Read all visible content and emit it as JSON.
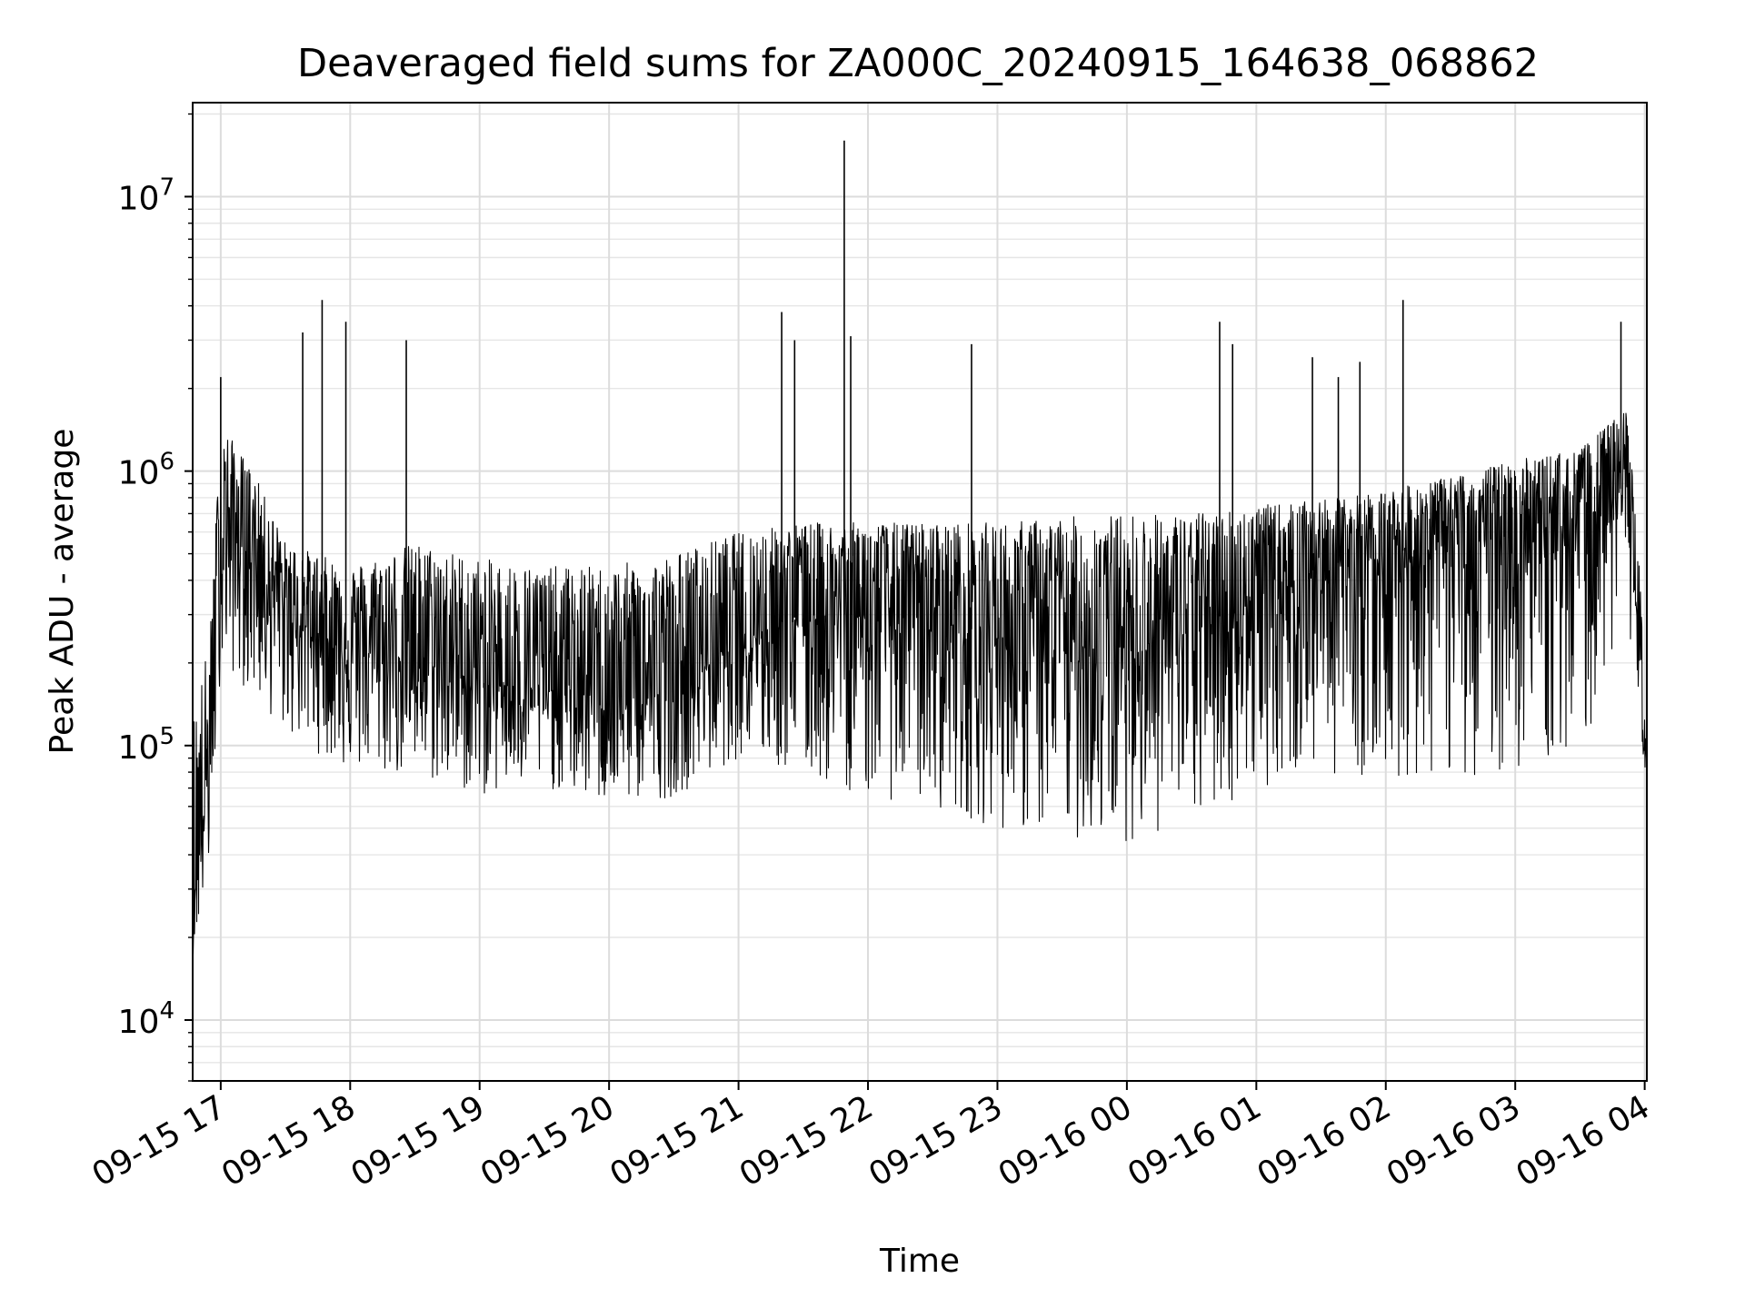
{
  "chart_data": {
    "type": "line",
    "title": "Deaveraged field sums for ZA000C_20240915_164638_068862",
    "xlabel": "Time",
    "ylabel": "Peak ADU - average",
    "xscale": "time",
    "yscale": "log",
    "xlim": [
      "2024-09-15 16:47",
      "2024-09-16 04:01"
    ],
    "ylim": [
      6000,
      22000000
    ],
    "grid": true,
    "grid_minor": true,
    "line_color": "#000000",
    "x_ticks": [
      "09-15 17",
      "09-15 18",
      "09-15 19",
      "09-15 20",
      "09-15 21",
      "09-15 22",
      "09-15 23",
      "09-16 00",
      "09-16 01",
      "09-16 02",
      "09-16 03",
      "09-16 04"
    ],
    "y_ticks": [
      {
        "base": "10",
        "exp": "4",
        "value": 10000
      },
      {
        "base": "10",
        "exp": "5",
        "value": 100000
      },
      {
        "base": "10",
        "exp": "6",
        "value": 1000000
      },
      {
        "base": "10",
        "exp": "7",
        "value": 10000000
      }
    ],
    "series": [
      {
        "envelope": [
          {
            "x": "2024-09-15 16:47",
            "low": 17000,
            "mid": 25000,
            "high": 130000
          },
          {
            "x": "2024-09-15 16:55",
            "low": 35000,
            "mid": 90000,
            "high": 250000
          },
          {
            "x": "2024-09-15 17:00",
            "low": 200000,
            "mid": 600000,
            "high": 1500000
          },
          {
            "x": "2024-09-15 17:15",
            "low": 150000,
            "mid": 500000,
            "high": 1000000
          },
          {
            "x": "2024-09-15 17:30",
            "low": 110000,
            "mid": 300000,
            "high": 550000
          },
          {
            "x": "2024-09-15 18:00",
            "low": 80000,
            "mid": 220000,
            "high": 450000
          },
          {
            "x": "2024-09-15 18:30",
            "low": 75000,
            "mid": 210000,
            "high": 550000
          },
          {
            "x": "2024-09-15 19:00",
            "low": 65000,
            "mid": 170000,
            "high": 480000
          },
          {
            "x": "2024-09-15 19:30",
            "low": 70000,
            "mid": 160000,
            "high": 450000
          },
          {
            "x": "2024-09-15 20:00",
            "low": 60000,
            "mid": 150000,
            "high": 450000
          },
          {
            "x": "2024-09-15 20:30",
            "low": 65000,
            "mid": 155000,
            "high": 500000
          },
          {
            "x": "2024-09-15 21:00",
            "low": 90000,
            "mid": 250000,
            "high": 600000
          },
          {
            "x": "2024-09-15 21:30",
            "low": 75000,
            "mid": 300000,
            "high": 650000
          },
          {
            "x": "2024-09-15 22:00",
            "low": 65000,
            "mid": 300000,
            "high": 650000
          },
          {
            "x": "2024-09-15 22:30",
            "low": 60000,
            "mid": 290000,
            "high": 650000
          },
          {
            "x": "2024-09-15 23:00",
            "low": 50000,
            "mid": 250000,
            "high": 650000
          },
          {
            "x": "2024-09-15 23:30",
            "low": 45000,
            "mid": 230000,
            "high": 680000
          },
          {
            "x": "2024-09-16 00:00",
            "low": 45000,
            "mid": 230000,
            "high": 700000
          },
          {
            "x": "2024-09-16 00:30",
            "low": 50000,
            "mid": 260000,
            "high": 700000
          },
          {
            "x": "2024-09-16 01:00",
            "low": 70000,
            "mid": 350000,
            "high": 750000
          },
          {
            "x": "2024-09-16 01:30",
            "low": 80000,
            "mid": 450000,
            "high": 780000
          },
          {
            "x": "2024-09-16 02:00",
            "low": 75000,
            "mid": 500000,
            "high": 850000
          },
          {
            "x": "2024-09-16 02:30",
            "low": 75000,
            "mid": 550000,
            "high": 950000
          },
          {
            "x": "2024-09-16 03:00",
            "low": 80000,
            "mid": 600000,
            "high": 1100000
          },
          {
            "x": "2024-09-16 03:30",
            "low": 90000,
            "mid": 650000,
            "high": 1200000
          },
          {
            "x": "2024-09-16 03:52",
            "low": 300000,
            "mid": 900000,
            "high": 1700000
          },
          {
            "x": "2024-09-16 03:58",
            "low": 120000,
            "mid": 200000,
            "high": 400000
          },
          {
            "x": "2024-09-16 04:01",
            "low": 65000,
            "mid": 70000,
            "high": 90000
          }
        ],
        "spikes": [
          {
            "x": "2024-09-15 17:00",
            "y": 2200000
          },
          {
            "x": "2024-09-15 17:38",
            "y": 3200000
          },
          {
            "x": "2024-09-15 17:47",
            "y": 4200000
          },
          {
            "x": "2024-09-15 17:58",
            "y": 3500000
          },
          {
            "x": "2024-09-15 18:26",
            "y": 3000000
          },
          {
            "x": "2024-09-15 21:20",
            "y": 3800000
          },
          {
            "x": "2024-09-15 21:26",
            "y": 3000000
          },
          {
            "x": "2024-09-15 21:49",
            "y": 16000000
          },
          {
            "x": "2024-09-15 21:52",
            "y": 3100000
          },
          {
            "x": "2024-09-15 22:48",
            "y": 2900000
          },
          {
            "x": "2024-09-16 00:43",
            "y": 3500000
          },
          {
            "x": "2024-09-16 00:49",
            "y": 2900000
          },
          {
            "x": "2024-09-16 01:26",
            "y": 2600000
          },
          {
            "x": "2024-09-16 01:38",
            "y": 2200000
          },
          {
            "x": "2024-09-16 01:48",
            "y": 2500000
          },
          {
            "x": "2024-09-16 02:08",
            "y": 4200000
          },
          {
            "x": "2024-09-16 03:49",
            "y": 3500000
          }
        ]
      }
    ]
  }
}
